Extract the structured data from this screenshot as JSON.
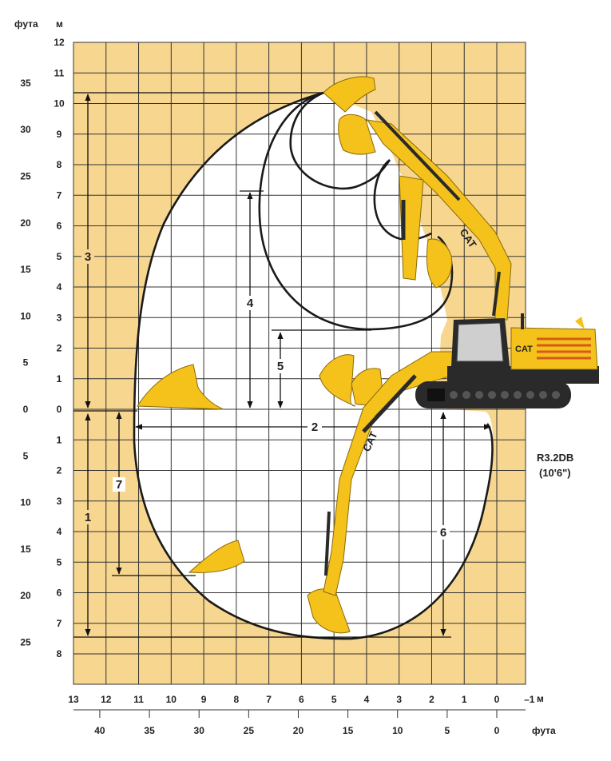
{
  "units": {
    "feet_label": "фута",
    "meters_label": "м"
  },
  "left_axis": {
    "meters": [
      "12",
      "11",
      "10",
      "9",
      "8",
      "7",
      "6",
      "5",
      "4",
      "3",
      "2",
      "1",
      "0",
      "1",
      "2",
      "3",
      "4",
      "5",
      "6",
      "7",
      "8"
    ],
    "feet": [
      {
        "label": "35",
        "ft": 35
      },
      {
        "label": "30",
        "ft": 30
      },
      {
        "label": "25",
        "ft": 25
      },
      {
        "label": "20",
        "ft": 20
      },
      {
        "label": "15",
        "ft": 15
      },
      {
        "label": "10",
        "ft": 10
      },
      {
        "label": "5",
        "ft": 5
      },
      {
        "label": "0",
        "ft": 0
      },
      {
        "label": "5",
        "ft": -5
      },
      {
        "label": "10",
        "ft": -10
      },
      {
        "label": "15",
        "ft": -15
      },
      {
        "label": "20",
        "ft": -20
      },
      {
        "label": "25",
        "ft": -25
      }
    ]
  },
  "bottom_axis": {
    "meters": [
      "13",
      "12",
      "11",
      "10",
      "9",
      "8",
      "7",
      "6",
      "5",
      "4",
      "3",
      "2",
      "1",
      "0",
      "–1"
    ],
    "meters_unit": "м",
    "feet": [
      {
        "label": "40",
        "ft": 40
      },
      {
        "label": "35",
        "ft": 35
      },
      {
        "label": "30",
        "ft": 30
      },
      {
        "label": "25",
        "ft": 25
      },
      {
        "label": "20",
        "ft": 20
      },
      {
        "label": "15",
        "ft": 15
      },
      {
        "label": "10",
        "ft": 10
      },
      {
        "label": "5",
        "ft": 5
      },
      {
        "label": "0",
        "ft": 0
      }
    ],
    "feet_unit": "фута"
  },
  "dimensions": [
    {
      "id": "1",
      "label": "1"
    },
    {
      "id": "2",
      "label": "2"
    },
    {
      "id": "3",
      "label": "3"
    },
    {
      "id": "4",
      "label": "4"
    },
    {
      "id": "5",
      "label": "5"
    },
    {
      "id": "6",
      "label": "6"
    },
    {
      "id": "7",
      "label": "7"
    }
  ],
  "stick_label": {
    "line1": "R3.2DB",
    "line2": "(10'6\")"
  },
  "brand": "CAT",
  "colors": {
    "grid_bg": "#f7d690",
    "grid_line": "#333333",
    "envelope_fill": "#ffffff",
    "machine_yellow": "#f4c21b",
    "machine_dark": "#2a2a2a"
  }
}
